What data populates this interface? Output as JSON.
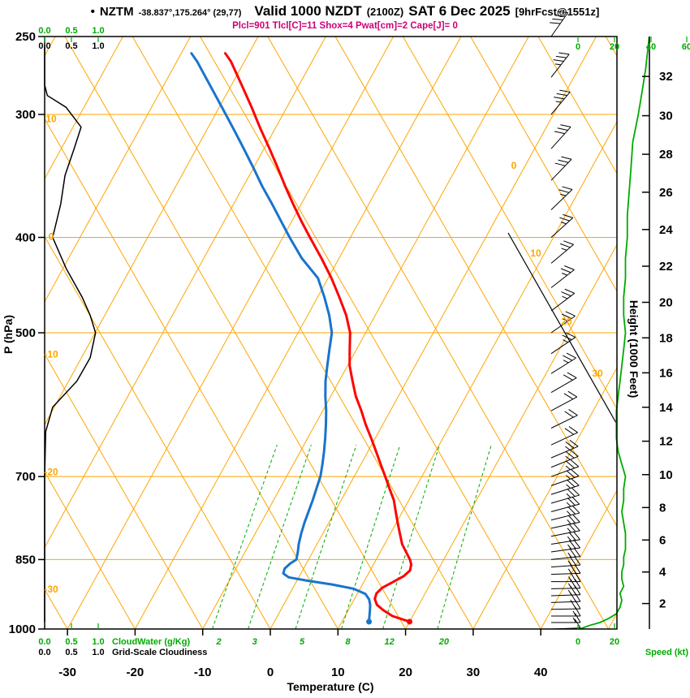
{
  "header": {
    "bullet": "•",
    "station": "NZTM",
    "coords": "-38.837°,175.264° (29,77)",
    "valid": "Valid 1000 NZDT",
    "valid_zulu": "(2100Z)",
    "date": "SAT 6 Dec 2025",
    "forecast": "[9hrFcst@1551z]",
    "indices": "Plcl=901 Tlcl[C]=11 Shox=4 Pwat[cm]=2 Cape[J]= 0"
  },
  "axes": {
    "pressure": {
      "label": "P (hPa)",
      "ticks": [
        250,
        300,
        400,
        500,
        700,
        850,
        1000
      ]
    },
    "temperature": {
      "label": "Temperature (C)",
      "ticks": [
        -30,
        -20,
        -10,
        0,
        10,
        20,
        30,
        40
      ]
    },
    "height": {
      "label": "Height (1000 Feet)",
      "ticks": [
        2,
        4,
        6,
        8,
        10,
        12,
        14,
        16,
        18,
        20,
        22,
        24,
        26,
        28,
        30,
        32
      ]
    },
    "cloudwater": {
      "label": "CloudWater (g/Kg)",
      "ticks": [
        "0.0",
        "0.5",
        "1.0"
      ]
    },
    "cloudiness": {
      "label": "Grid-Scale Cloudiness",
      "ticks": [
        "0.0",
        "0.5",
        "1.0"
      ]
    },
    "speed": {
      "label": "Speed (kt)",
      "ticks_top": [
        "0",
        "20",
        "40",
        "60"
      ],
      "ticks_bottom": [
        "0",
        "20"
      ]
    },
    "dry_adiabat_labels": [
      10,
      0,
      -10,
      -20,
      -30
    ],
    "isotherm_labels": [
      0,
      10,
      20,
      30
    ],
    "mixing_ratio_labels": [
      2,
      3,
      5,
      8,
      12,
      20
    ]
  },
  "colors": {
    "grid": "#ffa500",
    "moisture": "#00aa00",
    "temperature_curve": "#ff0000",
    "dewpoint_curve": "#1874cd",
    "indices_text": "#cc0077",
    "wind": "#000000"
  },
  "chart_data": {
    "type": "line",
    "title": "NZTM skew-T log-P sounding, valid 1000 NZDT (2100Z) SAT 6 Dec 2025, 9hr forecast",
    "x_axis": {
      "label": "Temperature (C)",
      "range": [
        -35,
        45
      ]
    },
    "y_axis": {
      "label": "P (hPa)",
      "range": [
        1000,
        250
      ],
      "scale": "log"
    },
    "legend": "none",
    "series": [
      {
        "name": "Temperature (C)",
        "color": "#ff0000",
        "points": [
          [
            983,
            20.0
          ],
          [
            970,
            17.0
          ],
          [
            957,
            15.2
          ],
          [
            945,
            13.8
          ],
          [
            932,
            13.0
          ],
          [
            920,
            12.8
          ],
          [
            908,
            13.2
          ],
          [
            896,
            14.3
          ],
          [
            884,
            15.4
          ],
          [
            872,
            15.9
          ],
          [
            860,
            15.6
          ],
          [
            850,
            15.0
          ],
          [
            835,
            13.8
          ],
          [
            820,
            12.6
          ],
          [
            800,
            11.4
          ],
          [
            780,
            10.2
          ],
          [
            760,
            9.0
          ],
          [
            740,
            7.8
          ],
          [
            720,
            6.2
          ],
          [
            700,
            4.6
          ],
          [
            680,
            2.9
          ],
          [
            660,
            1.2
          ],
          [
            640,
            -0.6
          ],
          [
            620,
            -2.5
          ],
          [
            600,
            -4.3
          ],
          [
            580,
            -6.3
          ],
          [
            560,
            -8.0
          ],
          [
            540,
            -9.7
          ],
          [
            520,
            -11.0
          ],
          [
            500,
            -12.3
          ],
          [
            480,
            -14.3
          ],
          [
            460,
            -16.8
          ],
          [
            440,
            -19.5
          ],
          [
            420,
            -22.6
          ],
          [
            400,
            -26.0
          ],
          [
            385,
            -28.6
          ],
          [
            370,
            -31.2
          ],
          [
            355,
            -33.8
          ],
          [
            340,
            -36.4
          ],
          [
            325,
            -39.2
          ],
          [
            310,
            -42.2
          ],
          [
            295,
            -45.2
          ],
          [
            280,
            -48.5
          ],
          [
            265,
            -52.0
          ],
          [
            260,
            -53.5
          ]
        ]
      },
      {
        "name": "Dewpoint (C)",
        "color": "#1874cd",
        "points": [
          [
            983,
            14.0
          ],
          [
            970,
            13.6
          ],
          [
            957,
            13.2
          ],
          [
            945,
            12.8
          ],
          [
            933,
            12.2
          ],
          [
            921,
            11.2
          ],
          [
            910,
            9.0
          ],
          [
            901,
            5.5
          ],
          [
            893,
            1.5
          ],
          [
            886,
            -1.5
          ],
          [
            878,
            -2.6
          ],
          [
            868,
            -2.8
          ],
          [
            858,
            -2.4
          ],
          [
            850,
            -1.8
          ],
          [
            835,
            -2.2
          ],
          [
            820,
            -2.7
          ],
          [
            800,
            -3.2
          ],
          [
            780,
            -3.6
          ],
          [
            760,
            -3.9
          ],
          [
            740,
            -4.2
          ],
          [
            720,
            -4.6
          ],
          [
            700,
            -5.0
          ],
          [
            680,
            -5.7
          ],
          [
            660,
            -6.5
          ],
          [
            640,
            -7.4
          ],
          [
            620,
            -8.4
          ],
          [
            600,
            -9.5
          ],
          [
            580,
            -10.8
          ],
          [
            560,
            -12.0
          ],
          [
            540,
            -13.0
          ],
          [
            520,
            -14.0
          ],
          [
            500,
            -15.0
          ],
          [
            480,
            -16.8
          ],
          [
            460,
            -19.0
          ],
          [
            440,
            -21.5
          ],
          [
            420,
            -25.5
          ],
          [
            400,
            -29.0
          ],
          [
            385,
            -31.6
          ],
          [
            370,
            -34.3
          ],
          [
            355,
            -37.2
          ],
          [
            340,
            -40.0
          ],
          [
            325,
            -43.0
          ],
          [
            310,
            -46.2
          ],
          [
            295,
            -49.6
          ],
          [
            280,
            -53.2
          ],
          [
            265,
            -57.0
          ],
          [
            260,
            -58.5
          ]
        ]
      },
      {
        "name": "Grid-scale cloudiness (0-1)",
        "color": "#000000",
        "points": [
          [
            983,
            0
          ],
          [
            700,
            0
          ],
          [
            630,
            0.02
          ],
          [
            595,
            0.15
          ],
          [
            560,
            0.6
          ],
          [
            530,
            0.85
          ],
          [
            500,
            0.95
          ],
          [
            480,
            0.85
          ],
          [
            460,
            0.7
          ],
          [
            430,
            0.4
          ],
          [
            400,
            0.15
          ],
          [
            370,
            0.3
          ],
          [
            346,
            0.38
          ],
          [
            325,
            0.55
          ],
          [
            309,
            0.68
          ],
          [
            295,
            0.4
          ],
          [
            287,
            0.05
          ],
          [
            280,
            0
          ],
          [
            255,
            0
          ]
        ]
      },
      {
        "name": "Wind speed (kt)",
        "color": "#00aa00",
        "points": [
          [
            1000,
            1
          ],
          [
            992,
            6
          ],
          [
            985,
            12
          ],
          [
            975,
            17
          ],
          [
            965,
            21
          ],
          [
            950,
            23
          ],
          [
            935,
            24
          ],
          [
            920,
            23
          ],
          [
            905,
            25
          ],
          [
            890,
            24
          ],
          [
            875,
            24
          ],
          [
            860,
            25
          ],
          [
            845,
            25
          ],
          [
            830,
            26
          ],
          [
            815,
            26
          ],
          [
            800,
            26
          ],
          [
            780,
            25
          ],
          [
            760,
            24
          ],
          [
            740,
            25
          ],
          [
            720,
            25
          ],
          [
            700,
            26
          ],
          [
            680,
            24
          ],
          [
            660,
            22
          ],
          [
            640,
            21
          ],
          [
            620,
            21
          ],
          [
            600,
            21
          ],
          [
            580,
            22
          ],
          [
            560,
            23
          ],
          [
            540,
            24
          ],
          [
            520,
            25
          ],
          [
            500,
            26
          ],
          [
            480,
            25
          ],
          [
            460,
            25
          ],
          [
            440,
            26
          ],
          [
            420,
            26
          ],
          [
            400,
            27
          ],
          [
            380,
            27
          ],
          [
            360,
            28
          ],
          [
            340,
            29
          ],
          [
            320,
            30
          ],
          [
            300,
            33
          ],
          [
            285,
            35
          ],
          [
            270,
            37
          ],
          [
            260,
            38
          ],
          [
            250,
            39
          ]
        ]
      }
    ],
    "wind_barbs": {
      "units": "kt",
      "format": "[pressure_hPa, direction_deg_from, speed_kt]",
      "levels": [
        [
          1000,
          268,
          10
        ],
        [
          985,
          270,
          14
        ],
        [
          970,
          270,
          17
        ],
        [
          955,
          269,
          20
        ],
        [
          940,
          268,
          22
        ],
        [
          925,
          268,
          23
        ],
        [
          910,
          269,
          24
        ],
        [
          895,
          270,
          24
        ],
        [
          880,
          268,
          24
        ],
        [
          865,
          266,
          25
        ],
        [
          850,
          264,
          25
        ],
        [
          835,
          262,
          25
        ],
        [
          820,
          261,
          26
        ],
        [
          805,
          259,
          25
        ],
        [
          790,
          258,
          25
        ],
        [
          775,
          256,
          24
        ],
        [
          760,
          255,
          24
        ],
        [
          745,
          254,
          25
        ],
        [
          730,
          252,
          25
        ],
        [
          715,
          251,
          25
        ],
        [
          700,
          250,
          26
        ],
        [
          685,
          248,
          25
        ],
        [
          670,
          247,
          23
        ],
        [
          650,
          245,
          22
        ],
        [
          625,
          244,
          21
        ],
        [
          600,
          242,
          21
        ],
        [
          575,
          240,
          22
        ],
        [
          550,
          238,
          24
        ],
        [
          525,
          236,
          25
        ],
        [
          500,
          235,
          26
        ],
        [
          475,
          233,
          25
        ],
        [
          450,
          232,
          25
        ],
        [
          425,
          230,
          26
        ],
        [
          400,
          228,
          27
        ],
        [
          375,
          226,
          27
        ],
        [
          350,
          224,
          28
        ],
        [
          325,
          222,
          30
        ],
        [
          300,
          220,
          33
        ],
        [
          275,
          218,
          36
        ],
        [
          250,
          215,
          40
        ]
      ]
    }
  }
}
